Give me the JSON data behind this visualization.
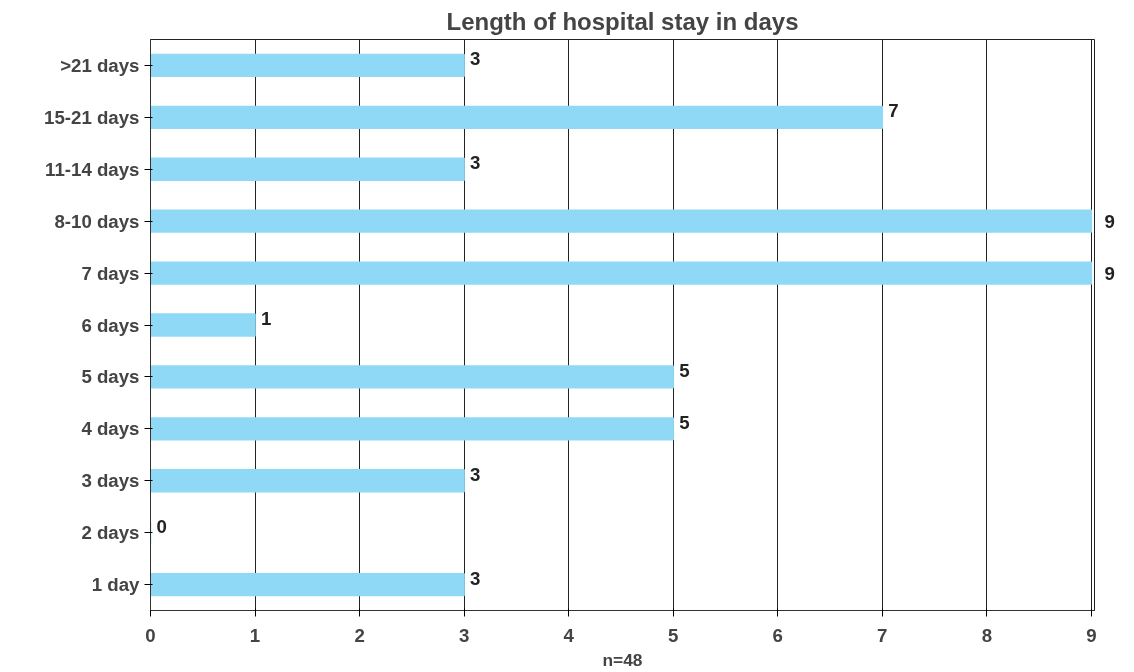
{
  "chart_data": {
    "type": "bar",
    "orientation": "horizontal",
    "title": "Length of hospital stay in days",
    "xlabel": "n=48",
    "categories": [
      ">21 days",
      "15-21 days",
      "11-14 days",
      "8-10 days",
      "7 days",
      "6 days",
      "5 days",
      "4 days",
      "3 days",
      "2 days",
      "1 day"
    ],
    "values": [
      3,
      7,
      3,
      9,
      9,
      1,
      5,
      5,
      3,
      0,
      3
    ],
    "color": "#8fd9f6",
    "xlim": [
      0,
      9.03
    ],
    "xticks": [
      0,
      1,
      2,
      3,
      4,
      5,
      6,
      7,
      8,
      9
    ],
    "grid": "x",
    "data_labels": true
  }
}
